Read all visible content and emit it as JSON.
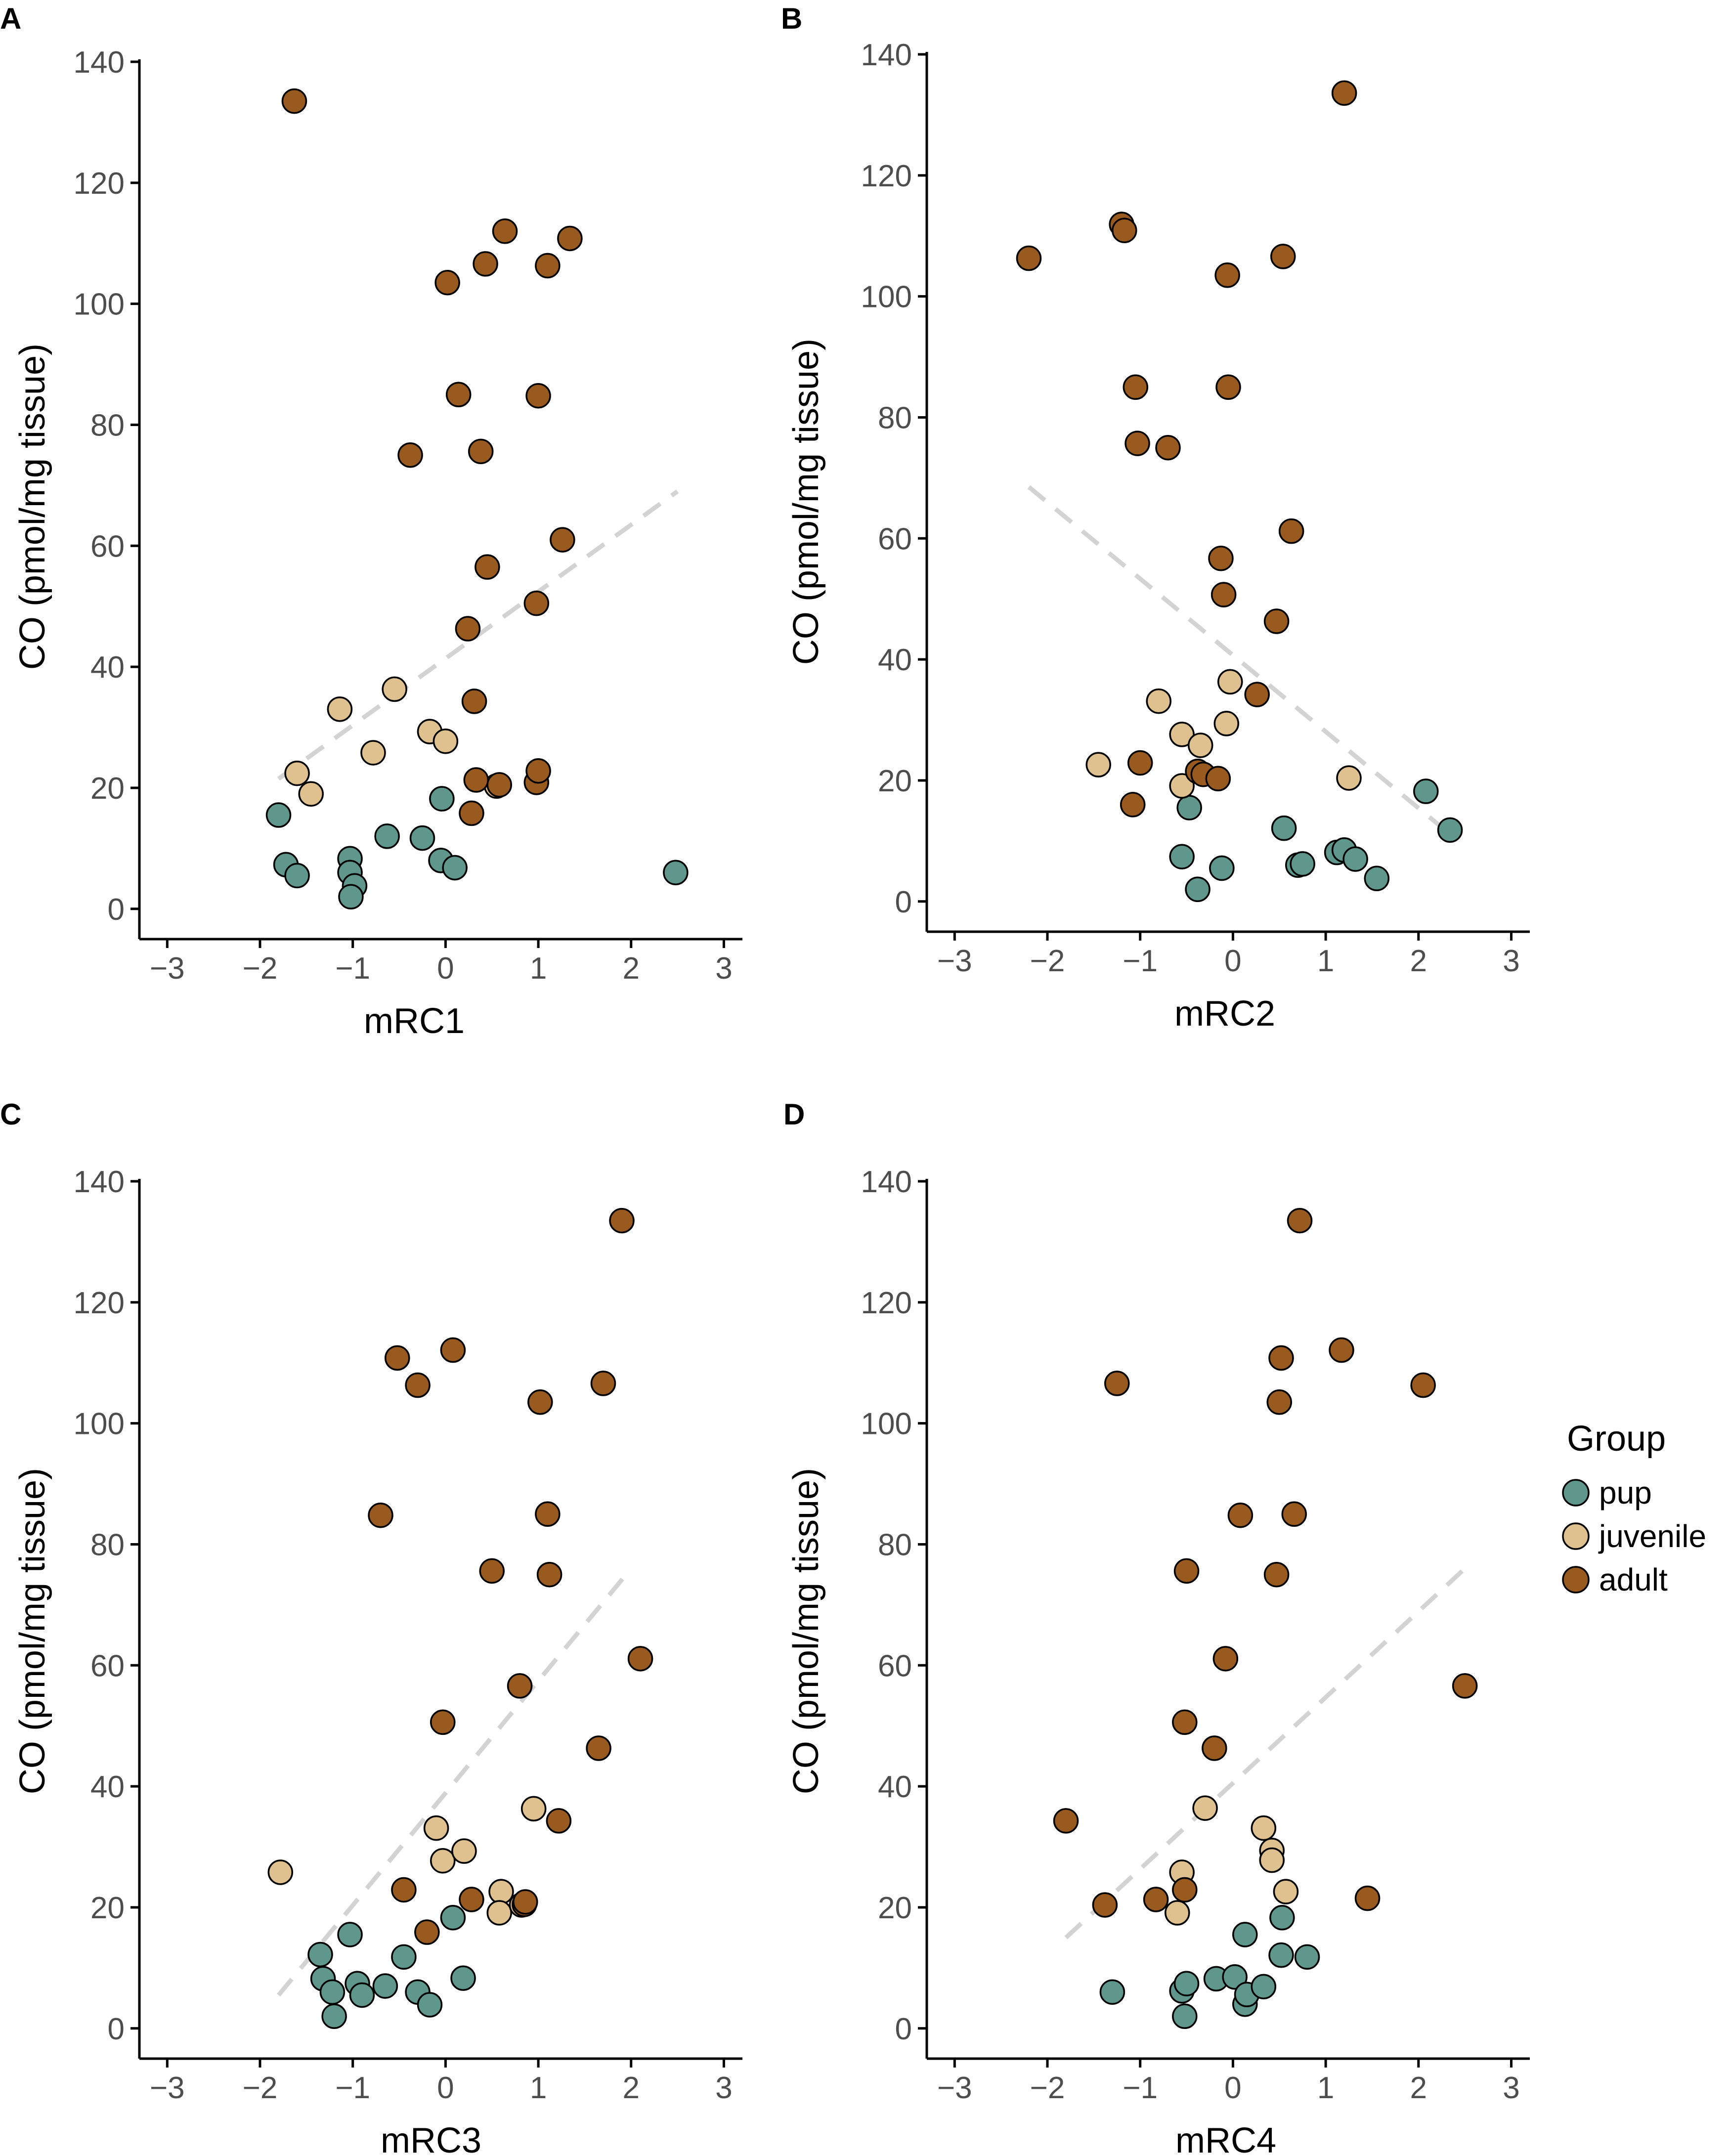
{
  "chart_data": [
    {
      "panel": "A",
      "type": "scatter",
      "xlabel": "mRC1",
      "ylabel": "CO (pmol/mg tissue)",
      "xlim": [
        -3.3,
        3.2
      ],
      "ylim": [
        -5,
        140
      ],
      "xticks": [
        -3,
        -2,
        -1,
        0,
        1,
        2,
        3
      ],
      "xtick_labels": [
        "−3",
        "−2",
        "−1",
        "0",
        "1",
        "2",
        "3"
      ],
      "yticks": [
        0,
        20,
        40,
        60,
        80,
        100,
        120,
        140
      ],
      "ytick_labels": [
        "0",
        "20",
        "40",
        "60",
        "80",
        "100",
        "120",
        "140"
      ],
      "trend": [
        [
          -1.8,
          21.5
        ],
        [
          2.5,
          69
        ]
      ],
      "series": [
        {
          "name": "pup",
          "points": [
            [
              -1.8,
              15.5
            ],
            [
              -1.72,
              7.3
            ],
            [
              -1.6,
              5.5
            ],
            [
              -1.03,
              8.3
            ],
            [
              -1.03,
              6
            ],
            [
              -0.98,
              3.8
            ],
            [
              -1.02,
              2
            ],
            [
              -0.63,
              12
            ],
            [
              -0.25,
              11.7
            ],
            [
              -0.05,
              8
            ],
            [
              0.1,
              6.8
            ],
            [
              -0.04,
              18.2
            ],
            [
              2.48,
              6
            ]
          ]
        },
        {
          "name": "juvenile",
          "points": [
            [
              -1.6,
              22.4
            ],
            [
              -1.45,
              19
            ],
            [
              -1.14,
              33
            ],
            [
              -0.78,
              25.8
            ],
            [
              -0.55,
              36.3
            ],
            [
              -0.17,
              29.3
            ],
            [
              0.0,
              27.7
            ],
            [
              0.55,
              20.3
            ]
          ]
        },
        {
          "name": "adult",
          "points": [
            [
              -1.63,
              133.5
            ],
            [
              0.64,
              112
            ],
            [
              1.34,
              110.8
            ],
            [
              0.43,
              106.6
            ],
            [
              1.1,
              106.3
            ],
            [
              0.02,
              103.5
            ],
            [
              0.14,
              85
            ],
            [
              1.0,
              84.8
            ],
            [
              -0.38,
              75
            ],
            [
              0.38,
              75.6
            ],
            [
              1.26,
              61
            ],
            [
              0.45,
              56.5
            ],
            [
              0.98,
              50.5
            ],
            [
              0.24,
              46.3
            ],
            [
              0.31,
              34.3
            ],
            [
              0.33,
              21.3
            ],
            [
              0.58,
              20.5
            ],
            [
              0.98,
              20.9
            ],
            [
              1.0,
              22.8
            ],
            [
              0.28,
              15.8
            ]
          ]
        }
      ]
    },
    {
      "panel": "B",
      "type": "scatter",
      "xlabel": "mRC2",
      "ylabel": "CO (pmol/mg tissue)",
      "xlim": [
        -3.3,
        3.2
      ],
      "ylim": [
        -5,
        140
      ],
      "xticks": [
        -3,
        -2,
        -1,
        0,
        1,
        2,
        3
      ],
      "xtick_labels": [
        "−3",
        "−2",
        "−1",
        "0",
        "1",
        "2",
        "3"
      ],
      "yticks": [
        0,
        20,
        40,
        60,
        80,
        100,
        120,
        140
      ],
      "ytick_labels": [
        "0",
        "20",
        "40",
        "60",
        "80",
        "100",
        "120",
        "140"
      ],
      "trend": [
        [
          -2.2,
          68.5
        ],
        [
          2.35,
          11
        ]
      ],
      "series": [
        {
          "name": "pup",
          "points": [
            [
              -0.47,
              15.5
            ],
            [
              -0.55,
              7.4
            ],
            [
              -0.38,
              2
            ],
            [
              -0.12,
              5.5
            ],
            [
              0.55,
              12.1
            ],
            [
              0.7,
              6
            ],
            [
              0.75,
              6.2
            ],
            [
              1.12,
              8.1
            ],
            [
              1.2,
              8.5
            ],
            [
              1.32,
              7
            ],
            [
              1.55,
              3.8
            ],
            [
              2.08,
              18.2
            ],
            [
              2.34,
              11.8
            ]
          ]
        },
        {
          "name": "juvenile",
          "points": [
            [
              -1.45,
              22.6
            ],
            [
              -0.8,
              33.1
            ],
            [
              -0.55,
              27.6
            ],
            [
              -0.35,
              25.8
            ],
            [
              -0.55,
              19.1
            ],
            [
              -0.03,
              36.3
            ],
            [
              -0.07,
              29.4
            ],
            [
              1.25,
              20.4
            ]
          ]
        },
        {
          "name": "adult",
          "points": [
            [
              1.2,
              133.6
            ],
            [
              -1.2,
              111.9
            ],
            [
              -1.17,
              110.9
            ],
            [
              -2.2,
              106.3
            ],
            [
              0.54,
              106.6
            ],
            [
              -0.06,
              103.5
            ],
            [
              -1.05,
              85
            ],
            [
              -0.05,
              85
            ],
            [
              -1.03,
              75.7
            ],
            [
              -0.7,
              75
            ],
            [
              0.63,
              61.2
            ],
            [
              -0.13,
              56.7
            ],
            [
              -0.1,
              50.7
            ],
            [
              0.47,
              46.3
            ],
            [
              0.26,
              34.2
            ],
            [
              -1.0,
              22.9
            ],
            [
              -0.38,
              21.5
            ],
            [
              -0.32,
              21
            ],
            [
              -0.16,
              20.3
            ],
            [
              -1.08,
              16
            ]
          ]
        }
      ]
    },
    {
      "panel": "C",
      "type": "scatter",
      "xlabel": "mRC3",
      "ylabel": "CO (pmol/mg tissue)",
      "xlim": [
        -3.3,
        3.2
      ],
      "ylim": [
        -5,
        140
      ],
      "xticks": [
        -3,
        -2,
        -1,
        0,
        1,
        2,
        3
      ],
      "xtick_labels": [
        "−3",
        "−2",
        "−1",
        "0",
        "1",
        "2",
        "3"
      ],
      "yticks": [
        0,
        20,
        40,
        60,
        80,
        100,
        120,
        140
      ],
      "ytick_labels": [
        "0",
        "20",
        "40",
        "60",
        "80",
        "100",
        "120",
        "140"
      ],
      "trend": [
        [
          -1.8,
          5.5
        ],
        [
          2.0,
          76
        ]
      ],
      "series": [
        {
          "name": "pup",
          "points": [
            [
              -1.35,
              12.2
            ],
            [
              -1.32,
              8.2
            ],
            [
              -1.22,
              6
            ],
            [
              -1.2,
              2
            ],
            [
              -1.03,
              15.5
            ],
            [
              -0.95,
              7.4
            ],
            [
              -0.9,
              5.5
            ],
            [
              -0.65,
              7
            ],
            [
              -0.45,
              11.8
            ],
            [
              -0.3,
              6
            ],
            [
              -0.17,
              3.9
            ],
            [
              0.08,
              18.3
            ],
            [
              0.19,
              8.3
            ]
          ]
        },
        {
          "name": "juvenile",
          "points": [
            [
              -1.78,
              25.8
            ],
            [
              -0.1,
              33.1
            ],
            [
              -0.03,
              27.7
            ],
            [
              0.2,
              29.3
            ],
            [
              0.6,
              22.6
            ],
            [
              0.58,
              19.1
            ],
            [
              0.82,
              20.4
            ],
            [
              0.95,
              36.3
            ]
          ]
        },
        {
          "name": "adult",
          "points": [
            [
              1.9,
              133.5
            ],
            [
              0.08,
              112.1
            ],
            [
              -0.52,
              110.8
            ],
            [
              -0.3,
              106.3
            ],
            [
              1.7,
              106.6
            ],
            [
              1.02,
              103.5
            ],
            [
              -0.7,
              84.8
            ],
            [
              1.1,
              85
            ],
            [
              0.5,
              75.6
            ],
            [
              1.12,
              75
            ],
            [
              2.1,
              61.1
            ],
            [
              0.8,
              56.6
            ],
            [
              -0.03,
              50.6
            ],
            [
              1.65,
              46.3
            ],
            [
              1.22,
              34.3
            ],
            [
              -0.45,
              22.9
            ],
            [
              0.28,
              21.3
            ],
            [
              0.85,
              20.5
            ],
            [
              0.86,
              20.9
            ],
            [
              -0.2,
              15.9
            ]
          ]
        }
      ]
    },
    {
      "panel": "D",
      "type": "scatter",
      "xlabel": "mRC4",
      "ylabel": "CO (pmol/mg tissue)",
      "xlim": [
        -3.3,
        3.2
      ],
      "ylim": [
        -5,
        140
      ],
      "xticks": [
        -3,
        -2,
        -1,
        0,
        1,
        2,
        3
      ],
      "xtick_labels": [
        "−3",
        "−2",
        "−1",
        "0",
        "1",
        "2",
        "3"
      ],
      "yticks": [
        0,
        20,
        40,
        60,
        80,
        100,
        120,
        140
      ],
      "ytick_labels": [
        "0",
        "20",
        "40",
        "60",
        "80",
        "100",
        "120",
        "140"
      ],
      "trend": [
        [
          -1.8,
          15
        ],
        [
          2.5,
          76
        ]
      ],
      "series": [
        {
          "name": "pup",
          "points": [
            [
              -1.3,
              6
            ],
            [
              -0.55,
              6.2
            ],
            [
              -0.5,
              7.4
            ],
            [
              -0.52,
              2
            ],
            [
              -0.18,
              8.2
            ],
            [
              0.02,
              8.5
            ],
            [
              0.13,
              4
            ],
            [
              0.15,
              5.6
            ],
            [
              0.33,
              6.9
            ],
            [
              0.13,
              15.5
            ],
            [
              0.52,
              12.1
            ],
            [
              0.53,
              18.3
            ],
            [
              0.8,
              11.8
            ]
          ]
        },
        {
          "name": "juvenile",
          "points": [
            [
              -0.55,
              25.8
            ],
            [
              -0.6,
              19.1
            ],
            [
              -0.3,
              36.4
            ],
            [
              0.33,
              33.1
            ],
            [
              0.42,
              29.4
            ],
            [
              0.42,
              27.8
            ],
            [
              0.57,
              22.6
            ]
          ]
        },
        {
          "name": "adult",
          "points": [
            [
              0.72,
              133.5
            ],
            [
              1.17,
              112.1
            ],
            [
              0.52,
              110.8
            ],
            [
              -1.25,
              106.6
            ],
            [
              2.05,
              106.3
            ],
            [
              0.5,
              103.5
            ],
            [
              0.08,
              84.8
            ],
            [
              0.66,
              85
            ],
            [
              -0.5,
              75.6
            ],
            [
              0.47,
              75
            ],
            [
              -0.08,
              61.1
            ],
            [
              2.5,
              56.6
            ],
            [
              -0.52,
              50.6
            ],
            [
              -0.2,
              46.3
            ],
            [
              -1.8,
              34.3
            ],
            [
              -1.38,
              20.4
            ],
            [
              -0.83,
              21.3
            ],
            [
              -0.52,
              22.9
            ],
            [
              1.45,
              21.5
            ]
          ]
        }
      ]
    }
  ],
  "legend": {
    "title": "Group",
    "items": [
      {
        "name": "pup",
        "color": "#5f978c"
      },
      {
        "name": "juvenile",
        "color": "#dfc08f"
      },
      {
        "name": "adult",
        "color": "#995a1f"
      }
    ]
  },
  "colors": {
    "pup": "#5f978c",
    "juvenile": "#dfc08f",
    "adult": "#995a1f",
    "trend": "#d3d3d3"
  }
}
